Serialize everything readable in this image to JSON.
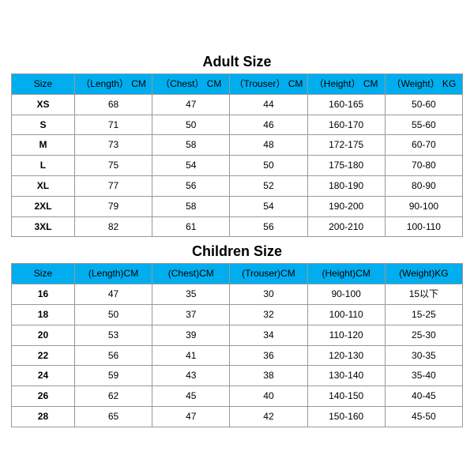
{
  "colors": {
    "header_bg": "#00aeef",
    "border": "#999999",
    "text": "#000000",
    "background": "#ffffff"
  },
  "typography": {
    "title_fontsize": 18,
    "title_weight": "bold",
    "cell_fontsize": 12,
    "size_col_weight": "bold",
    "font_family": "Arial"
  },
  "tables": [
    {
      "title": "Adult Size",
      "columns": [
        "Size",
        "（Length） CM",
        "（Chest） CM",
        "（Trouser） CM",
        "（Height） CM",
        "（Weight） KG"
      ],
      "rows": [
        [
          "XS",
          "68",
          "47",
          "44",
          "160-165",
          "50-60"
        ],
        [
          "S",
          "71",
          "50",
          "46",
          "160-170",
          "55-60"
        ],
        [
          "M",
          "73",
          "58",
          "48",
          "172-175",
          "60-70"
        ],
        [
          "L",
          "75",
          "54",
          "50",
          "175-180",
          "70-80"
        ],
        [
          "XL",
          "77",
          "56",
          "52",
          "180-190",
          "80-90"
        ],
        [
          "2XL",
          "79",
          "58",
          "54",
          "190-200",
          "90-100"
        ],
        [
          "3XL",
          "82",
          "61",
          "56",
          "200-210",
          "100-110"
        ]
      ]
    },
    {
      "title": "Children Size",
      "columns": [
        "Size",
        "(Length)CM",
        "(Chest)CM",
        "(Trouser)CM",
        "(Height)CM",
        "(Weight)KG"
      ],
      "rows": [
        [
          "16",
          "47",
          "35",
          "30",
          "90-100",
          "15以下"
        ],
        [
          "18",
          "50",
          "37",
          "32",
          "100-110",
          "15-25"
        ],
        [
          "20",
          "53",
          "39",
          "34",
          "110-120",
          "25-30"
        ],
        [
          "22",
          "56",
          "41",
          "36",
          "120-130",
          "30-35"
        ],
        [
          "24",
          "59",
          "43",
          "38",
          "130-140",
          "35-40"
        ],
        [
          "26",
          "62",
          "45",
          "40",
          "140-150",
          "40-45"
        ],
        [
          "28",
          "65",
          "47",
          "42",
          "150-160",
          "45-50"
        ]
      ]
    }
  ]
}
